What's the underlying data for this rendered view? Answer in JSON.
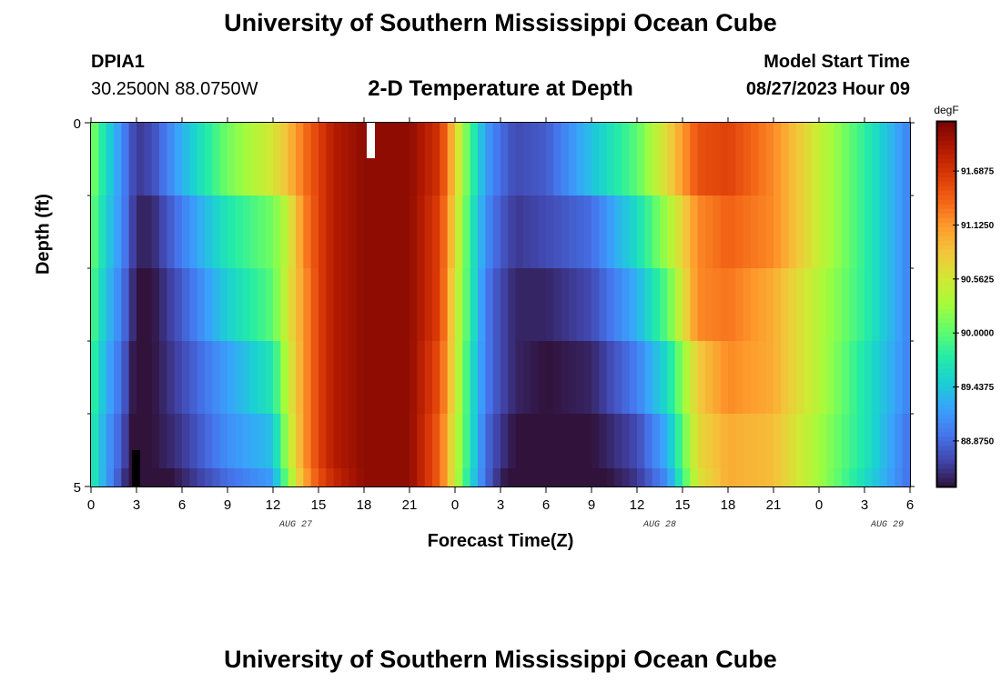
{
  "header": {
    "title": "University of Southern Mississippi Ocean Cube",
    "station_id": "DPIA1",
    "coords": "30.2500N  88.0750W",
    "chart_title": "2-D Temperature at Depth",
    "model_start_label": "Model Start Time",
    "model_start_value": "08/27/2023 Hour 09",
    "footer_title": "University of Southern Mississippi Ocean Cube"
  },
  "chart_data": {
    "type": "heatmap",
    "title": "2-D Temperature at Depth",
    "xlabel": "Forecast Time(Z)",
    "ylabel": "Depth (ft)",
    "unit": "degF",
    "x_tick_labels": [
      "0",
      "3",
      "6",
      "9",
      "12",
      "15",
      "18",
      "21",
      "0",
      "3",
      "6",
      "9",
      "12",
      "15",
      "18",
      "21",
      "0",
      "3",
      "6"
    ],
    "date_labels": [
      {
        "label": "AUG 27",
        "after_tick": 6
      },
      {
        "label": "AUG 28",
        "after_tick": 14
      },
      {
        "label": "AUG 29",
        "after_tick": 19
      }
    ],
    "y_tick_labels": [
      "0",
      "5"
    ],
    "ylim": [
      0,
      5
    ],
    "y_minor_ticks": [
      1,
      2,
      3,
      4
    ],
    "colorbar": {
      "ticks": [
        "88.8750",
        "89.4375",
        "90.0000",
        "90.5625",
        "91.1250",
        "91.6875"
      ],
      "tick_values": [
        88.875,
        89.4375,
        90.0,
        90.5625,
        91.125,
        91.6875
      ],
      "vmin": 88.4,
      "vmax": 92.2,
      "colors": [
        "#30123b",
        "#4145ab",
        "#4675ed",
        "#39a2fc",
        "#1bcfd4",
        "#24eca6",
        "#61fc6c",
        "#a4fc3b",
        "#d1e834",
        "#f3c63a",
        "#fe9b2d",
        "#f36315",
        "#d93806",
        "#b11901",
        "#7a0403"
      ]
    },
    "depths": [
      0.25,
      1.25,
      2.25,
      3.25,
      4.25,
      4.75
    ],
    "hours": [
      0,
      3,
      6,
      9,
      12,
      15,
      18,
      21,
      24,
      27,
      30,
      33,
      36,
      39,
      42,
      45,
      48,
      51,
      54
    ],
    "anchors_hours": [
      0,
      1,
      2,
      3,
      4,
      6,
      9,
      12,
      13,
      14,
      15,
      16,
      18,
      21,
      23,
      24,
      25,
      26,
      27,
      28,
      30,
      33,
      36,
      38,
      40,
      42,
      45,
      48,
      51,
      54
    ],
    "anchors_values": {
      "0.25": [
        90.2,
        89.6,
        89.1,
        88.6,
        88.7,
        89.3,
        90.1,
        90.6,
        90.9,
        91.3,
        91.6,
        91.9,
        92.1,
        92.1,
        91.7,
        90.8,
        89.9,
        89.2,
        88.9,
        88.7,
        88.8,
        89.4,
        90.0,
        90.7,
        91.5,
        91.6,
        91.2,
        90.5,
        89.8,
        89.0
      ],
      "1.25": [
        90.1,
        89.5,
        89.1,
        88.5,
        88.5,
        89.0,
        89.7,
        90.1,
        90.5,
        91.2,
        91.6,
        91.9,
        92.1,
        92.1,
        91.6,
        90.7,
        89.8,
        89.1,
        88.8,
        88.6,
        88.7,
        88.9,
        89.6,
        90.3,
        91.2,
        91.4,
        91.2,
        90.5,
        89.8,
        89.0
      ],
      "2.25": [
        90.0,
        89.4,
        89.0,
        88.4,
        88.4,
        88.8,
        89.5,
        90.0,
        90.6,
        91.1,
        91.6,
        91.9,
        92.1,
        92.1,
        91.6,
        90.6,
        89.8,
        89.0,
        88.7,
        88.5,
        88.5,
        88.7,
        89.3,
        90.0,
        91.2,
        91.3,
        91.0,
        90.4,
        89.8,
        89.0
      ],
      "3.25": [
        89.9,
        89.3,
        88.9,
        88.3,
        88.4,
        88.7,
        89.2,
        89.7,
        90.5,
        91.1,
        91.6,
        91.9,
        92.1,
        92.1,
        91.5,
        90.6,
        89.7,
        89.0,
        88.7,
        88.5,
        88.4,
        88.5,
        89.0,
        89.6,
        90.8,
        91.2,
        91.0,
        90.4,
        89.7,
        89.0
      ],
      "4.25": [
        89.8,
        89.2,
        88.8,
        88.2,
        88.4,
        88.6,
        89.1,
        89.4,
        90.4,
        91.1,
        91.6,
        91.9,
        92.1,
        92.1,
        91.4,
        90.5,
        89.7,
        88.9,
        88.6,
        88.4,
        88.3,
        88.4,
        88.7,
        89.3,
        90.7,
        91.0,
        90.9,
        90.3,
        89.7,
        88.9
      ],
      "4.75": [
        89.8,
        89.2,
        88.7,
        88.1,
        88.2,
        88.5,
        88.9,
        89.2,
        90.2,
        91.0,
        91.5,
        91.8,
        92.1,
        92.1,
        91.4,
        90.5,
        89.6,
        88.9,
        88.5,
        88.3,
        88.2,
        88.3,
        88.6,
        89.1,
        90.6,
        91.0,
        90.9,
        90.3,
        89.6,
        88.9
      ]
    }
  }
}
